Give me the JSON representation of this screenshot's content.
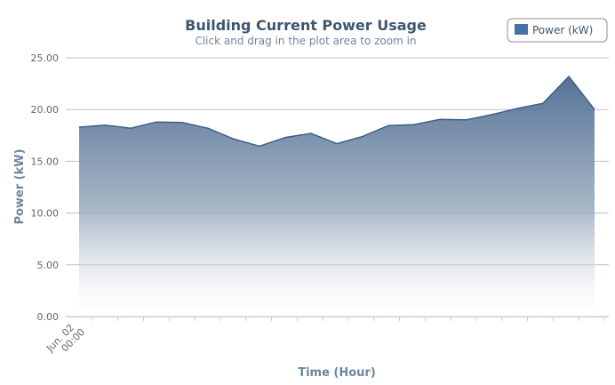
{
  "chart_data": {
    "type": "area",
    "title": "Building Current Power Usage",
    "subtitle": "Click and drag in the plot area to zoom in",
    "xlabel": "Time (Hour)",
    "ylabel": "Power (kW)",
    "ylim": [
      0,
      25
    ],
    "yticks": [
      "0.00",
      "5.00",
      "10.00",
      "15.00",
      "20.00",
      "25.00"
    ],
    "xtick_label": [
      "Jun. 02",
      "00:00"
    ],
    "grid": true,
    "legend_position": "top-right",
    "colors": {
      "series": "#4572a7",
      "grid": "#c0c0c0",
      "axis": "#c0d0e0"
    },
    "series": [
      {
        "name": "Power (kW)",
        "values": [
          18.3,
          18.5,
          18.2,
          18.8,
          18.75,
          18.2,
          17.15,
          16.45,
          17.3,
          17.7,
          16.7,
          17.4,
          18.45,
          18.55,
          19.05,
          19.0,
          19.5,
          20.1,
          20.6,
          23.2,
          20.0
        ]
      }
    ]
  }
}
